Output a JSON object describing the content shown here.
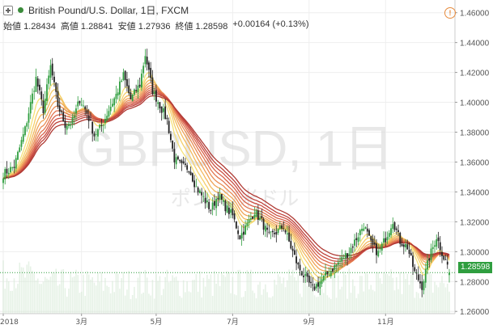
{
  "header": {
    "title": "British Pound/U.S. Dollar, 1日, FXCM",
    "open_label": "始値",
    "open": "1.28434",
    "high_label": "高値",
    "high": "1.28841",
    "low_label": "安値",
    "low": "1.27936",
    "close_label": "終値",
    "close": "1.28598",
    "change": "+0.00164 (+0.13%)"
  },
  "watermark": {
    "symbol": "GBPUSD, 1日",
    "name": "ポンド/米ドル"
  },
  "current_price_label": "1.28598",
  "colors": {
    "up": "#2f9e3f",
    "down": "#222222",
    "price_tag": "#2f9e3f",
    "alert": "#e68a3c"
  },
  "icons": {
    "add": "plus-icon",
    "status": "dot-icon",
    "alert": "alert-icon"
  },
  "chart_data": {
    "type": "candlestick",
    "symbol": "GBPUSD",
    "interval": "1日",
    "y_axis": {
      "ticks": [
        1.26,
        1.28,
        1.3,
        1.32,
        1.34,
        1.36,
        1.38,
        1.4,
        1.42,
        1.44,
        1.46
      ],
      "range": [
        1.2585,
        1.4685
      ],
      "side": "right"
    },
    "x_axis": {
      "tick_labels": [
        "2018",
        "3月",
        "5月",
        "7月",
        "9月",
        "11月"
      ]
    },
    "close_path": [
      [
        0,
        1.352
      ],
      [
        6,
        1.357
      ],
      [
        12,
        1.382
      ],
      [
        18,
        1.416
      ],
      [
        22,
        1.395
      ],
      [
        26,
        1.424
      ],
      [
        30,
        1.398
      ],
      [
        34,
        1.385
      ],
      [
        38,
        1.387
      ],
      [
        42,
        1.402
      ],
      [
        46,
        1.393
      ],
      [
        50,
        1.378
      ],
      [
        54,
        1.384
      ],
      [
        58,
        1.395
      ],
      [
        62,
        1.405
      ],
      [
        66,
        1.418
      ],
      [
        70,
        1.402
      ],
      [
        75,
        1.412
      ],
      [
        78,
        1.432
      ],
      [
        82,
        1.408
      ],
      [
        86,
        1.398
      ],
      [
        90,
        1.388
      ],
      [
        94,
        1.362
      ],
      [
        98,
        1.357
      ],
      [
        102,
        1.356
      ],
      [
        106,
        1.343
      ],
      [
        110,
        1.336
      ],
      [
        114,
        1.328
      ],
      [
        118,
        1.338
      ],
      [
        122,
        1.33
      ],
      [
        126,
        1.324
      ],
      [
        130,
        1.31
      ],
      [
        134,
        1.318
      ],
      [
        138,
        1.327
      ],
      [
        142,
        1.32
      ],
      [
        146,
        1.31
      ],
      [
        150,
        1.313
      ],
      [
        154,
        1.317
      ],
      [
        158,
        1.303
      ],
      [
        162,
        1.29
      ],
      [
        166,
        1.282
      ],
      [
        170,
        1.275
      ],
      [
        174,
        1.28
      ],
      [
        178,
        1.285
      ],
      [
        182,
        1.29
      ],
      [
        186,
        1.295
      ],
      [
        190,
        1.3
      ],
      [
        194,
        1.309
      ],
      [
        198,
        1.318
      ],
      [
        202,
        1.305
      ],
      [
        206,
        1.299
      ],
      [
        210,
        1.309
      ],
      [
        214,
        1.321
      ],
      [
        218,
        1.307
      ],
      [
        222,
        1.303
      ],
      [
        226,
        1.286
      ],
      [
        230,
        1.277
      ],
      [
        234,
        1.296
      ],
      [
        238,
        1.31
      ],
      [
        242,
        1.296
      ],
      [
        246,
        1.286
      ]
    ],
    "volume_visible": true,
    "ribbon_indicator": true,
    "last": {
      "open": 1.28434,
      "high": 1.28841,
      "low": 1.27936,
      "close": 1.28598,
      "change": 0.00164,
      "change_pct": 0.13
    },
    "grid": true
  }
}
